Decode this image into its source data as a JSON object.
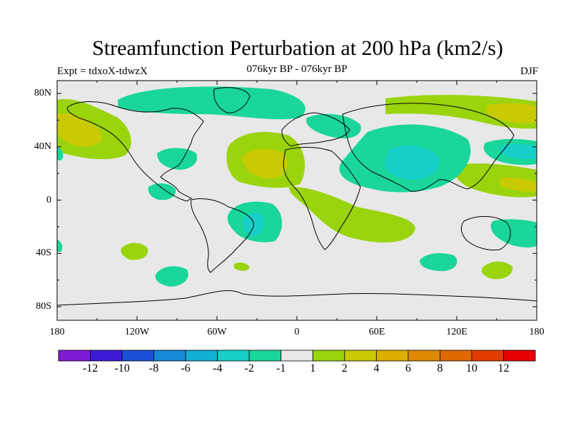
{
  "map": {
    "title": "Streamfunction Perturbation at 200 hPa (km2/s)",
    "left_label": "Expt = tdxoX-tdwzX",
    "center_label": "076kyr BP - 076kyr BP",
    "right_label": "DJF",
    "lat_labels": [
      "80N",
      "40N",
      "0",
      "40S",
      "80S"
    ],
    "lon_labels": [
      "180",
      "120W",
      "60W",
      "0",
      "60E",
      "120E",
      "180"
    ]
  },
  "colorbar": {
    "colors": [
      "#7e1bd6",
      "#3c19d4",
      "#1a4fd8",
      "#158ad8",
      "#12b1d4",
      "#16cfc8",
      "#1ad69a",
      "#e8e8e8",
      "#99d40c",
      "#c9ca04",
      "#dcae00",
      "#df8a00",
      "#e06800",
      "#e23d00",
      "#e60000"
    ],
    "labels": [
      "-12",
      "-10",
      "-8",
      "-6",
      "-4",
      "-2",
      "-1",
      "1",
      "2",
      "4",
      "6",
      "8",
      "10",
      "12"
    ]
  },
  "field_colors": {
    "background": "#e8e8e8",
    "neg1": "#1ad69a",
    "neg2": "#16cfc8",
    "pos1": "#99d40c",
    "pos2": "#c9ca04"
  }
}
